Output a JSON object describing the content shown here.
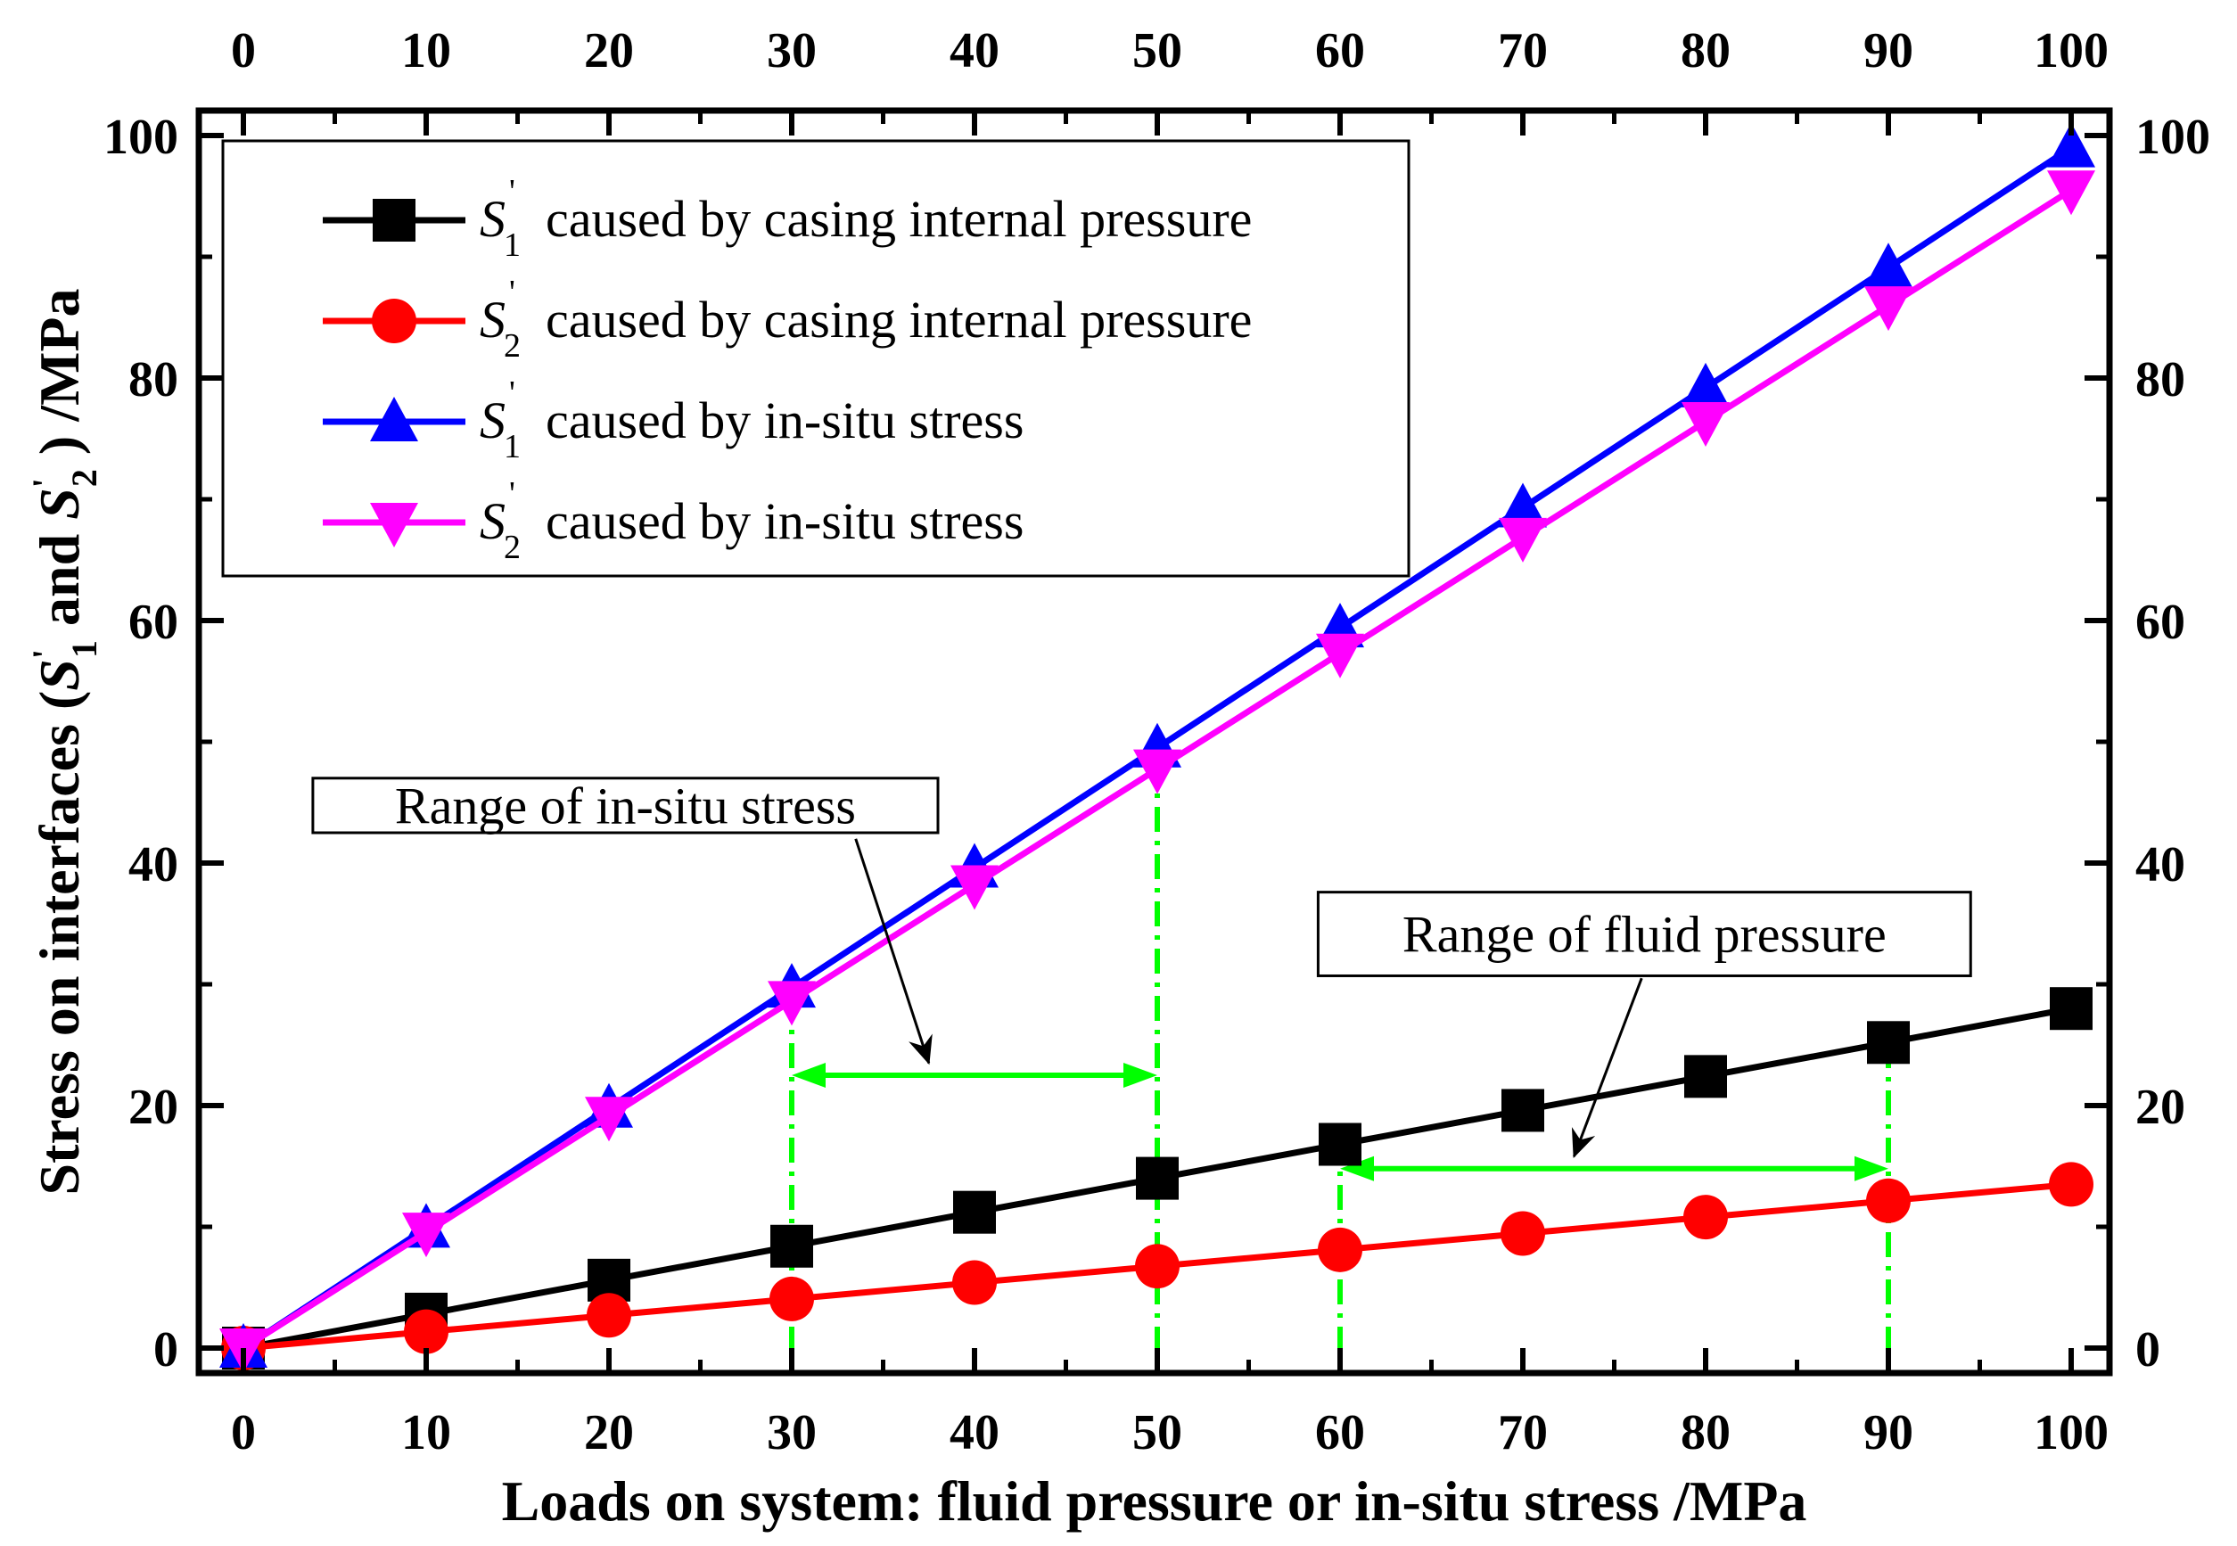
{
  "chart_data": {
    "type": "line",
    "xlabel": "Loads on system: fluid pressure or in-situ stress /MPa",
    "ylabel": {
      "prefix": "Stress on interfaces (",
      "s1": "S",
      "s1_sub": "1",
      "prime": "'",
      "middle": " and ",
      "s2": "S",
      "s2_sub": "2",
      "suffix": " ) /MPa"
    },
    "xlim": [
      0,
      100
    ],
    "ylim": [
      0,
      100
    ],
    "x_ticks": [
      0,
      10,
      20,
      30,
      40,
      50,
      60,
      70,
      80,
      90,
      100
    ],
    "y_ticks": [
      0,
      20,
      40,
      60,
      80,
      100
    ],
    "x": [
      0,
      10,
      20,
      30,
      40,
      50,
      60,
      70,
      80,
      90,
      100
    ],
    "series": [
      {
        "name": "S1' caused by casing internal pressure",
        "symbol": "S",
        "sub": "1",
        "label": "caused by casing internal pressure",
        "color": "#000000",
        "marker": "square",
        "values": [
          0,
          2.8,
          5.6,
          8.4,
          11.2,
          14.0,
          16.8,
          19.6,
          22.4,
          25.2,
          28.0
        ]
      },
      {
        "name": "S2' caused by casing internal pressure",
        "symbol": "S",
        "sub": "2",
        "label": "caused by casing internal pressure",
        "color": "#ff0000",
        "marker": "circle",
        "values": [
          0,
          1.35,
          2.7,
          4.05,
          5.4,
          6.75,
          8.1,
          9.45,
          10.8,
          12.15,
          13.5
        ]
      },
      {
        "name": "S1' caused by in-situ stress",
        "symbol": "S",
        "sub": "1",
        "label": "caused by in-situ stress",
        "color": "#0000ff",
        "marker": "triangle-up",
        "values": [
          0,
          9.9,
          19.8,
          29.7,
          39.6,
          49.5,
          59.4,
          69.3,
          79.2,
          89.1,
          99.0
        ]
      },
      {
        "name": "S2' caused by in-situ stress",
        "symbol": "S",
        "sub": "2",
        "label": "caused by in-situ stress",
        "color": "#ff00ff",
        "marker": "triangle-down",
        "values": [
          0,
          9.55,
          19.1,
          28.65,
          38.2,
          47.75,
          57.3,
          66.85,
          76.4,
          85.95,
          95.5
        ]
      }
    ],
    "annotations": [
      {
        "text": "Range of in-situ stress",
        "range": [
          30,
          50
        ],
        "arrow_y": 22.5,
        "vline_tops": [
          29.2,
          48.0
        ],
        "box_x": [
          3.8,
          38.0
        ],
        "box_y": [
          47.0,
          42.5
        ],
        "pointer_from": [
          33.5,
          42.0
        ],
        "pointer_to": [
          37.5,
          23.5
        ]
      },
      {
        "text": "Range of fluid pressure",
        "range": [
          60,
          90
        ],
        "arrow_y": 14.8,
        "vline_tops": [
          16.0,
          25.2
        ],
        "box_x": [
          58.8,
          94.5
        ],
        "box_y": [
          37.6,
          30.7
        ],
        "pointer_from": [
          76.5,
          30.5
        ],
        "pointer_to": [
          72.8,
          15.8
        ]
      }
    ],
    "range_color": "#00ff00",
    "legend_position": "top-left"
  }
}
